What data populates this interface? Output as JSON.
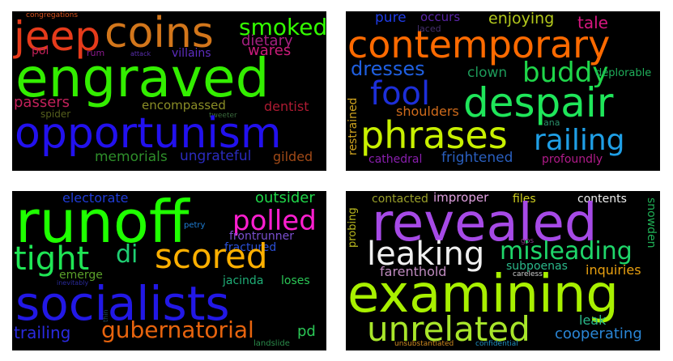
{
  "clouds": [
    {
      "words": [
        {
          "text": "congregations",
          "color": "#d9531e"
        },
        {
          "text": "jeep",
          "color": "#e63b1b"
        },
        {
          "text": "coins",
          "color": "#d2761b"
        },
        {
          "text": "smoked",
          "color": "#33ff00"
        },
        {
          "text": "dietary",
          "color": "#a32080"
        },
        {
          "text": "pol",
          "color": "#c2215a"
        },
        {
          "text": "rum",
          "color": "#8a1a8c"
        },
        {
          "text": "attack",
          "color": "#5a2fb0"
        },
        {
          "text": "villains",
          "color": "#5d2dc0"
        },
        {
          "text": "wares",
          "color": "#c81b79"
        },
        {
          "text": "engraved",
          "color": "#33ee00"
        },
        {
          "text": "passers",
          "color": "#c2215a"
        },
        {
          "text": "encompassed",
          "color": "#8a8d26"
        },
        {
          "text": "dentist",
          "color": "#ad1b32"
        },
        {
          "text": "spider",
          "color": "#565f1c"
        },
        {
          "text": "tweeter",
          "color": "#3a6a3d"
        },
        {
          "text": "opportunism",
          "color": "#2211ee"
        },
        {
          "text": "memorials",
          "color": "#2e8f2a"
        },
        {
          "text": "ungrateful",
          "color": "#2b2bbf"
        },
        {
          "text": "gilded",
          "color": "#a04a17"
        }
      ]
    },
    {
      "words": [
        {
          "text": "pure",
          "color": "#1f3be6"
        },
        {
          "text": "occurs",
          "color": "#5a24a8"
        },
        {
          "text": "enjoying",
          "color": "#b3c81c"
        },
        {
          "text": "laced",
          "color": "#46306e"
        },
        {
          "text": "tale",
          "color": "#d6167f"
        },
        {
          "text": "contemporary",
          "color": "#ff6a00"
        },
        {
          "text": "dresses",
          "color": "#1f5fe0"
        },
        {
          "text": "buddy",
          "color": "#1fd64a"
        },
        {
          "text": "clown",
          "color": "#1d9a59"
        },
        {
          "text": "deplorable",
          "color": "#1fae5a"
        },
        {
          "text": "fool",
          "color": "#1d2fd9"
        },
        {
          "text": "despair",
          "color": "#1fe65a"
        },
        {
          "text": "restrained",
          "color": "#cfa31f"
        },
        {
          "text": "shoulders",
          "color": "#cf6b1b"
        },
        {
          "text": "ana",
          "color": "#2a8f6a"
        },
        {
          "text": "phrases",
          "color": "#c8f000"
        },
        {
          "text": "railing",
          "color": "#1f9fe6"
        },
        {
          "text": "cathedral",
          "color": "#8a1faf"
        },
        {
          "text": "frightened",
          "color": "#2a5fbf"
        },
        {
          "text": "profoundly",
          "color": "#b11b8a"
        }
      ]
    },
    {
      "words": [
        {
          "text": "electorate",
          "color": "#1f3bd6"
        },
        {
          "text": "outsider",
          "color": "#1fd648"
        },
        {
          "text": "runoff",
          "color": "#1fff00"
        },
        {
          "text": "polled",
          "color": "#ff1fd0"
        },
        {
          "text": "petry",
          "color": "#1f7fd6"
        },
        {
          "text": "frontrunner",
          "color": "#7a4fcf"
        },
        {
          "text": "fractured",
          "color": "#2a4fd6"
        },
        {
          "text": "tight",
          "color": "#1fe655"
        },
        {
          "text": "di",
          "color": "#1fcf73"
        },
        {
          "text": "scored",
          "color": "#ffb000"
        },
        {
          "text": "emerge",
          "color": "#5aa02a"
        },
        {
          "text": "jacinda",
          "color": "#1fae77"
        },
        {
          "text": "loses",
          "color": "#2ac655"
        },
        {
          "text": "inevitably",
          "color": "#2a2a9a"
        },
        {
          "text": "thin",
          "color": "#1f4a5a"
        },
        {
          "text": "socialists",
          "color": "#2218e6"
        },
        {
          "text": "trailing",
          "color": "#2a2ae0"
        },
        {
          "text": "gubernatorial",
          "color": "#e8640e"
        },
        {
          "text": "pd",
          "color": "#2ac655"
        },
        {
          "text": "landslide",
          "color": "#2a8a4a"
        }
      ]
    },
    {
      "words": [
        {
          "text": "contacted",
          "color": "#9aa02a"
        },
        {
          "text": "improper",
          "color": "#e0a0e0"
        },
        {
          "text": "files",
          "color": "#d0d020"
        },
        {
          "text": "contents",
          "color": "#f0f0f0"
        },
        {
          "text": "probing",
          "color": "#b8b81f"
        },
        {
          "text": "revealed",
          "color": "#a64ae6"
        },
        {
          "text": "gps",
          "color": "#8a3a8a"
        },
        {
          "text": "snowden",
          "color": "#1fae55"
        },
        {
          "text": "leaking",
          "color": "#f0f0f0"
        },
        {
          "text": "misleading",
          "color": "#1fd66a"
        },
        {
          "text": "farenthold",
          "color": "#bf8abf"
        },
        {
          "text": "subpoenas",
          "color": "#2ab88a"
        },
        {
          "text": "careless",
          "color": "#cfcfcf"
        },
        {
          "text": "inquiries",
          "color": "#e8a010"
        },
        {
          "text": "examining",
          "color": "#a8f000"
        },
        {
          "text": "leak",
          "color": "#2ab88a"
        },
        {
          "text": "unrelated",
          "color": "#a8e62a"
        },
        {
          "text": "cooperating",
          "color": "#2a86d6"
        },
        {
          "text": "unsubstantiated",
          "color": "#cf8a1f"
        },
        {
          "text": "confidential",
          "color": "#1f8fbf"
        }
      ]
    }
  ]
}
